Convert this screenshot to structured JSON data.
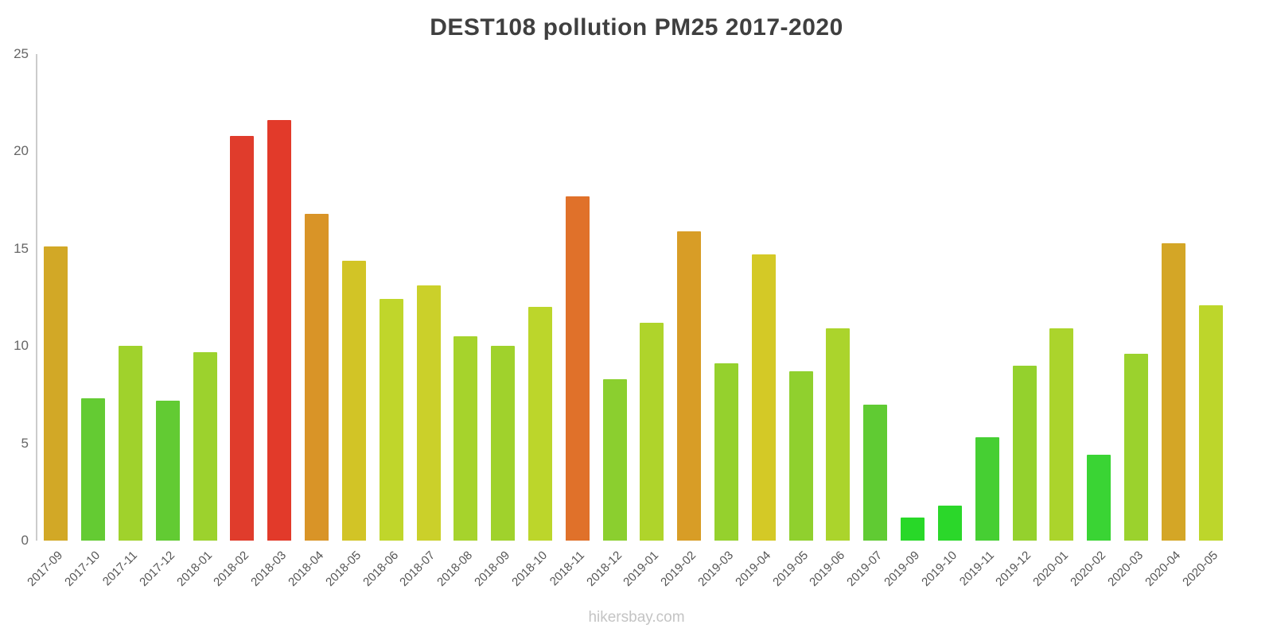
{
  "title": "DEST108 pollution PM25 2017-2020",
  "footer": "hikersbay.com",
  "colors": {
    "title_text": "#3f3f3f",
    "axis_line": "#cccccc",
    "tick_label": "#666666",
    "x_label": "#555555",
    "footer_text": "#c4c4c4",
    "background": "#ffffff"
  },
  "chart_data": {
    "type": "bar",
    "title": "DEST108 pollution PM25 2017-2020",
    "xlabel": "",
    "ylabel": "",
    "ylim": [
      0,
      25
    ],
    "yticks": [
      0,
      5,
      10,
      15,
      20,
      25
    ],
    "grid": false,
    "legend": "none",
    "note": "bar colors encode value from green (low) through yellow/orange to red (high); 2019-08 missing from series",
    "categories": [
      "2017-09",
      "2017-10",
      "2017-11",
      "2017-12",
      "2018-01",
      "2018-02",
      "2018-03",
      "2018-04",
      "2018-05",
      "2018-06",
      "2018-07",
      "2018-08",
      "2018-09",
      "2018-10",
      "2018-11",
      "2018-12",
      "2019-01",
      "2019-02",
      "2019-03",
      "2019-04",
      "2019-05",
      "2019-06",
      "2019-07",
      "2019-09",
      "2019-10",
      "2019-11",
      "2019-12",
      "2020-01",
      "2020-02",
      "2020-03",
      "2020-04",
      "2020-05"
    ],
    "values": [
      15.1,
      7.3,
      10.0,
      7.2,
      9.7,
      20.8,
      21.6,
      16.8,
      14.4,
      12.4,
      13.1,
      10.5,
      10.0,
      12.0,
      17.7,
      8.3,
      11.2,
      15.9,
      9.1,
      14.7,
      8.7,
      10.9,
      7.0,
      1.2,
      1.8,
      5.3,
      9.0,
      10.9,
      4.4,
      9.6,
      15.3,
      12.1
    ],
    "bar_colors": [
      "#d2a826",
      "#64cb33",
      "#a0d22c",
      "#62cb33",
      "#9cd22d",
      "#e03c2c",
      "#e23a2a",
      "#d99427",
      "#d2c426",
      "#c0d62b",
      "#cbd02a",
      "#a6d32c",
      "#a0d22c",
      "#bcd62b",
      "#e0712a",
      "#8bcf2f",
      "#afd42b",
      "#d89d26",
      "#95d12d",
      "#d4c926",
      "#90d02e",
      "#abd42c",
      "#60cb33",
      "#28d828",
      "#2bd72a",
      "#46cf33",
      "#94d12d",
      "#abd42c",
      "#3ad434",
      "#9bd22d",
      "#d4a626",
      "#bdd62b"
    ]
  }
}
